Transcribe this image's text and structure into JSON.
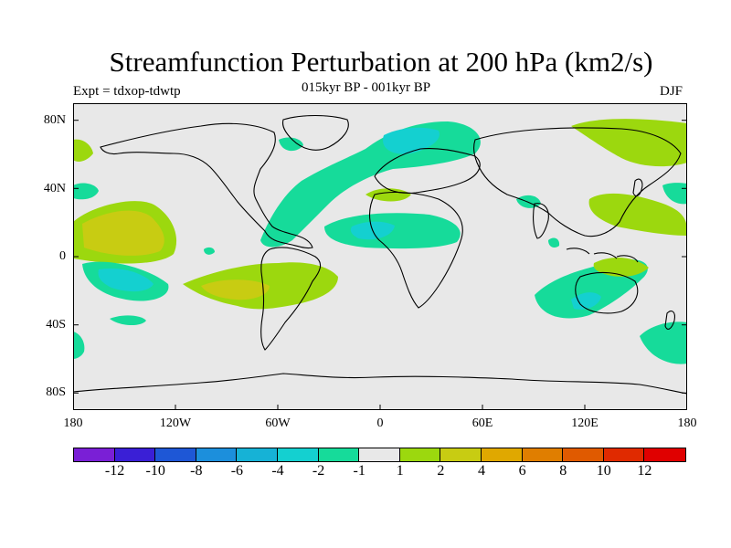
{
  "header": {
    "title": "Streamfunction Perturbation at 200 hPa (km2/s)",
    "left_string": "Expt = tdxop-tdwtp",
    "center_string": "015kyr BP - 001kyr BP",
    "right_string": "DJF"
  },
  "axes": {
    "lat_labels": [
      "80N",
      "40N",
      "0",
      "40S",
      "80S"
    ],
    "lon_labels": [
      "180",
      "120W",
      "60W",
      "0",
      "60E",
      "120E",
      "180"
    ]
  },
  "colorbar": {
    "colors": [
      "#7a1fd6",
      "#3a1fd6",
      "#1e57d6",
      "#1c8fdc",
      "#16b2d6",
      "#14d0d0",
      "#16db9a",
      "#e8e8e8",
      "#9cd80e",
      "#c8cc12",
      "#e0a800",
      "#e07e00",
      "#e05a00",
      "#e02a00",
      "#e00000"
    ],
    "labels": [
      "-12",
      "-10",
      "-8",
      "-6",
      "-4",
      "-2",
      "-1",
      "1",
      "2",
      "4",
      "6",
      "8",
      "10",
      "12"
    ]
  },
  "chart_data": {
    "type": "heatmap",
    "title": "Streamfunction Perturbation at 200 hPa (km2/s)",
    "subtitle": "015kyr BP - 001kyr BP",
    "projection": "cylindrical equidistant",
    "lon_range": [
      -180,
      180
    ],
    "lat_range": [
      -90,
      90
    ],
    "levels": [
      -12,
      -10,
      -8,
      -6,
      -4,
      -2,
      -1,
      1,
      2,
      4,
      6,
      8,
      10,
      12
    ],
    "background_color": "#e8e8e8",
    "features": [
      {
        "lon": -150,
        "lat": 20,
        "level": 2,
        "peak": 4
      },
      {
        "lon": -145,
        "lat": -16,
        "level": -2,
        "peak": -4
      },
      {
        "lon": -80,
        "lat": -20,
        "level": 2,
        "peak": 4
      },
      {
        "lon": -40,
        "lat": 50,
        "level": -1
      },
      {
        "lon": 20,
        "lat": 65,
        "level": -2,
        "peak": -4
      },
      {
        "lon": 15,
        "lat": 13,
        "level": -2,
        "peak": -4
      },
      {
        "lon": 105,
        "lat": -25,
        "level": -2,
        "peak": -4
      },
      {
        "lon": 130,
        "lat": 30,
        "level": 2
      },
      {
        "lon": 145,
        "lat": 75,
        "level": 2
      },
      {
        "lon": 175,
        "lat": -50,
        "level": -1
      }
    ]
  }
}
